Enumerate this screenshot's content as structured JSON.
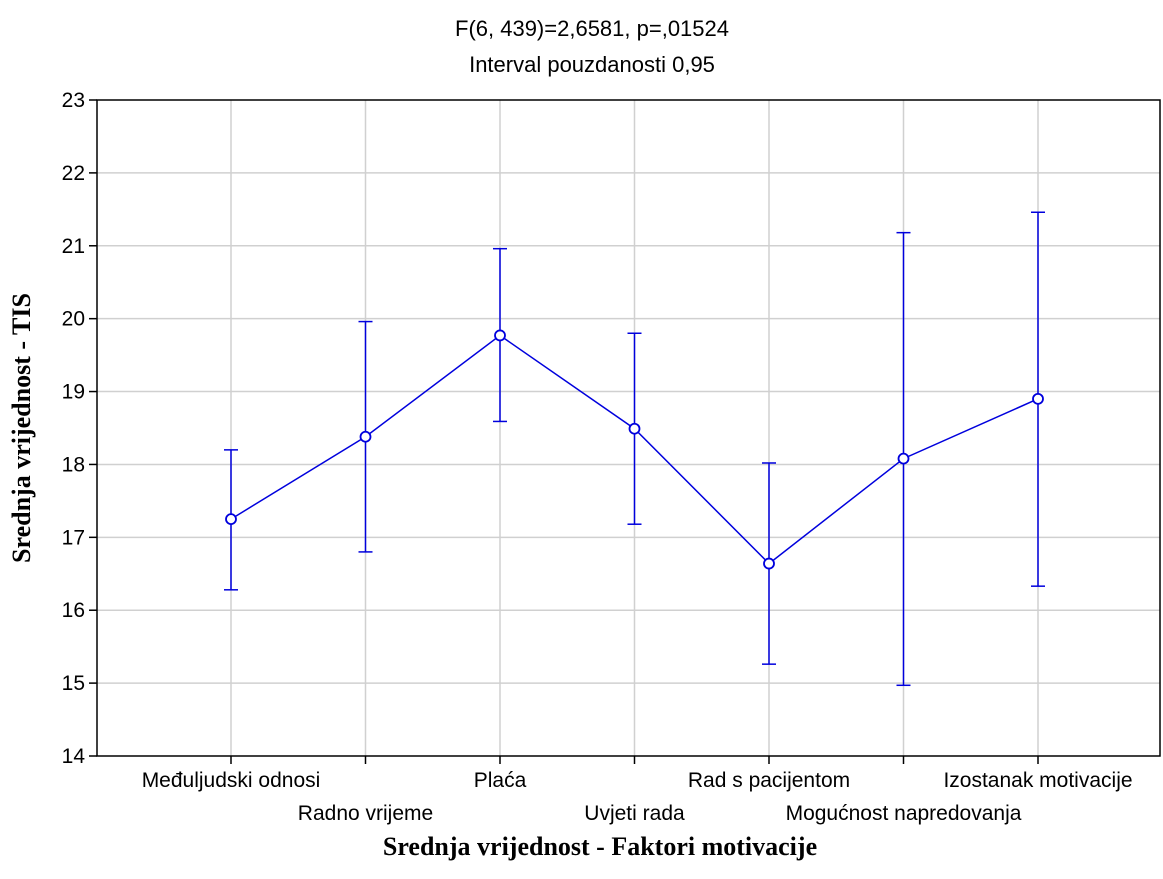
{
  "chart_data": {
    "type": "line",
    "title": "F(6, 439)=2,6581, p=,01524",
    "subtitle": "Interval pouzdanosti 0,95",
    "xlabel": "Srednja vrijednost - Faktori motivacije",
    "ylabel": "Srednja vrijednost - TIS",
    "ylim": [
      14,
      23
    ],
    "yticks": [
      "14",
      "15",
      "16",
      "17",
      "18",
      "19",
      "20",
      "21",
      "22",
      "23"
    ],
    "grid": true,
    "categories": [
      "Međuljudski odnosi",
      "Radno vrijeme",
      "Plaća",
      "Uvjeti rada",
      "Rad s pacijentom",
      "Mogućnost napredovanja",
      "Izostanak motivacije"
    ],
    "series": [
      {
        "values": [
          17.25,
          18.38,
          19.77,
          18.49,
          16.64,
          18.08,
          18.9
        ],
        "ci_lower": [
          16.28,
          16.8,
          18.59,
          17.18,
          15.26,
          14.97,
          16.33
        ],
        "ci_upper": [
          18.2,
          19.96,
          20.96,
          19.8,
          18.02,
          21.18,
          21.46
        ],
        "color": "#0000dd"
      }
    ]
  }
}
